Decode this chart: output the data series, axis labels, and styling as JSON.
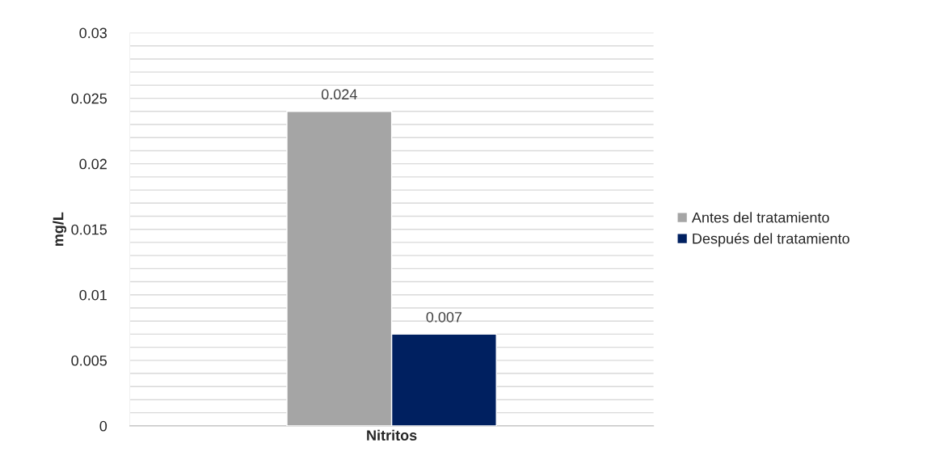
{
  "chart_data": {
    "type": "bar",
    "ylabel": "mg/L",
    "categories": [
      "Nitritos"
    ],
    "series": [
      {
        "name": "Antes del tratamiento",
        "color": "#a5a5a5",
        "values": [
          0.024
        ]
      },
      {
        "name": "Después del tratamiento",
        "color": "#002060",
        "values": [
          0.007
        ]
      }
    ],
    "ylim": [
      0,
      0.03
    ],
    "yticks": [
      0,
      {
        "value": 0.001,
        "label": null
      },
      {
        "value": 0.002,
        "label": null
      },
      {
        "value": 0.003,
        "label": null
      },
      {
        "value": 0.004,
        "label": null
      },
      0.005,
      {
        "value": 0.006,
        "label": null
      },
      {
        "value": 0.007,
        "label": null
      },
      {
        "value": 0.008,
        "label": null
      },
      {
        "value": 0.009,
        "label": null
      },
      0.01,
      {
        "value": 0.011,
        "label": null
      },
      {
        "value": 0.012,
        "label": null
      },
      {
        "value": 0.013,
        "label": null
      },
      {
        "value": 0.014,
        "label": null
      },
      0.015,
      {
        "value": 0.016,
        "label": null
      },
      {
        "value": 0.017,
        "label": null
      },
      {
        "value": 0.018,
        "label": null
      },
      {
        "value": 0.019,
        "label": null
      },
      0.02,
      {
        "value": 0.021,
        "label": null
      },
      {
        "value": 0.022,
        "label": null
      },
      {
        "value": 0.023,
        "label": null
      },
      {
        "value": 0.024,
        "label": null
      },
      0.025,
      {
        "value": 0.026,
        "label": null
      },
      {
        "value": 0.027,
        "label": null
      },
      {
        "value": 0.028,
        "label": null
      },
      {
        "value": 0.029,
        "label": null
      },
      0.03
    ],
    "grid": "y",
    "legend": "right",
    "data_labels": true
  }
}
